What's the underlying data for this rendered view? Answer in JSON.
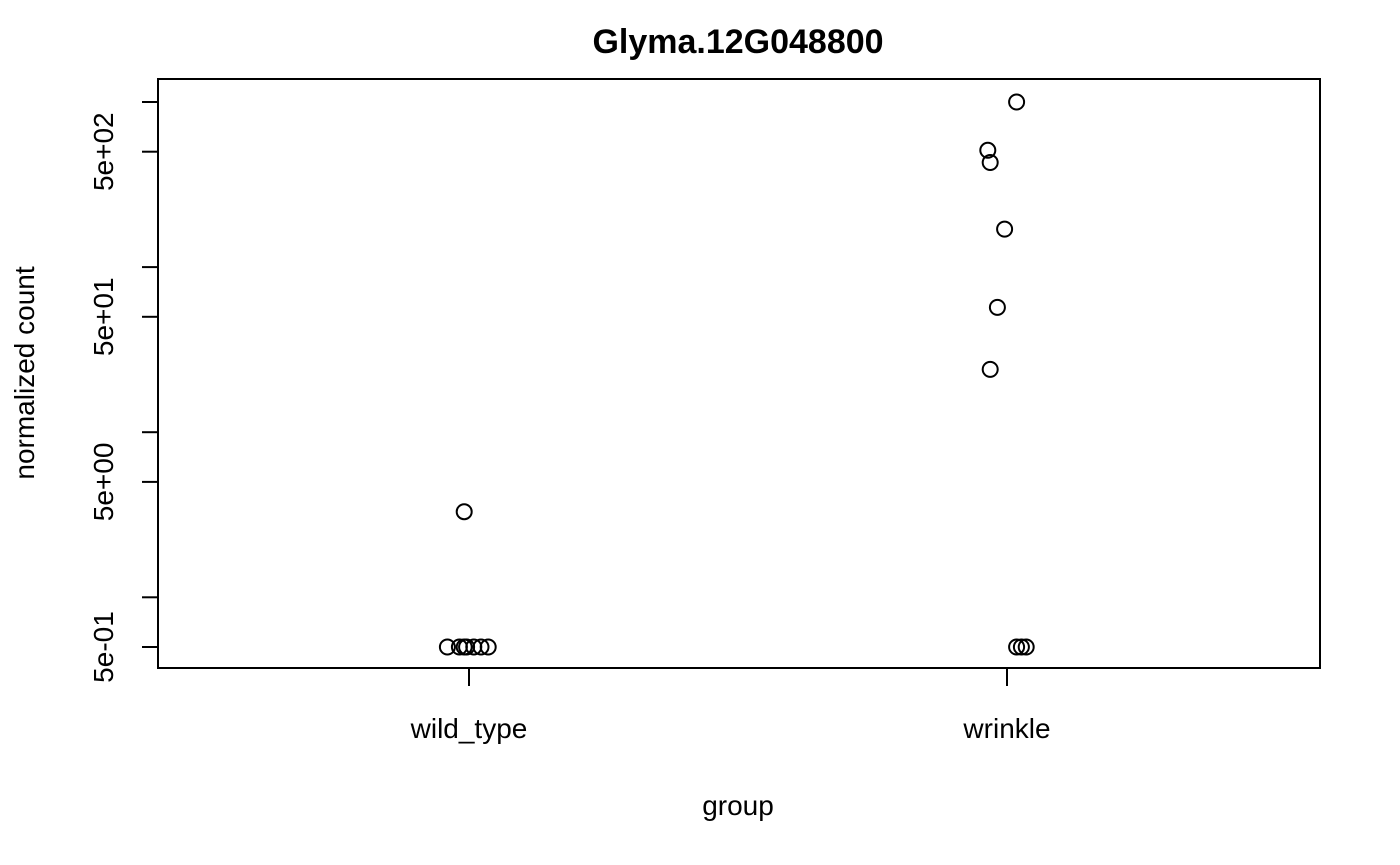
{
  "chart_data": {
    "type": "scatter",
    "title": "Glyma.12G048800",
    "xlabel": "group",
    "ylabel": "normalized count",
    "categories": [
      "wild_type",
      "wrinkle"
    ],
    "y_scale": "log10",
    "ylim": [
      0.4,
      1400
    ],
    "y_ticks": [
      {
        "value": 0.5,
        "label": "5e-01"
      },
      {
        "value": 1.0,
        "label": ""
      },
      {
        "value": 5.0,
        "label": "5e+00"
      },
      {
        "value": 10.0,
        "label": ""
      },
      {
        "value": 50.0,
        "label": "5e+01"
      },
      {
        "value": 100.0,
        "label": ""
      },
      {
        "value": 500.0,
        "label": "5e+02"
      },
      {
        "value": 1000.0,
        "label": ""
      }
    ],
    "points": [
      {
        "group": "wild_type",
        "jitter": -0.09,
        "y": 0.5
      },
      {
        "group": "wild_type",
        "jitter": -0.04,
        "y": 0.5
      },
      {
        "group": "wild_type",
        "jitter": -0.02,
        "y": 0.5
      },
      {
        "group": "wild_type",
        "jitter": -0.01,
        "y": 0.5
      },
      {
        "group": "wild_type",
        "jitter": 0.02,
        "y": 0.5
      },
      {
        "group": "wild_type",
        "jitter": 0.05,
        "y": 0.5
      },
      {
        "group": "wild_type",
        "jitter": 0.08,
        "y": 0.5
      },
      {
        "group": "wild_type",
        "jitter": -0.02,
        "y": 3.3
      },
      {
        "group": "wrinkle",
        "jitter": 0.04,
        "y": 1000
      },
      {
        "group": "wrinkle",
        "jitter": -0.08,
        "y": 510
      },
      {
        "group": "wrinkle",
        "jitter": -0.07,
        "y": 430
      },
      {
        "group": "wrinkle",
        "jitter": -0.01,
        "y": 170
      },
      {
        "group": "wrinkle",
        "jitter": -0.04,
        "y": 57
      },
      {
        "group": "wrinkle",
        "jitter": -0.07,
        "y": 24
      },
      {
        "group": "wrinkle",
        "jitter": 0.04,
        "y": 0.5
      },
      {
        "group": "wrinkle",
        "jitter": 0.06,
        "y": 0.5
      },
      {
        "group": "wrinkle",
        "jitter": 0.08,
        "y": 0.5
      }
    ]
  }
}
